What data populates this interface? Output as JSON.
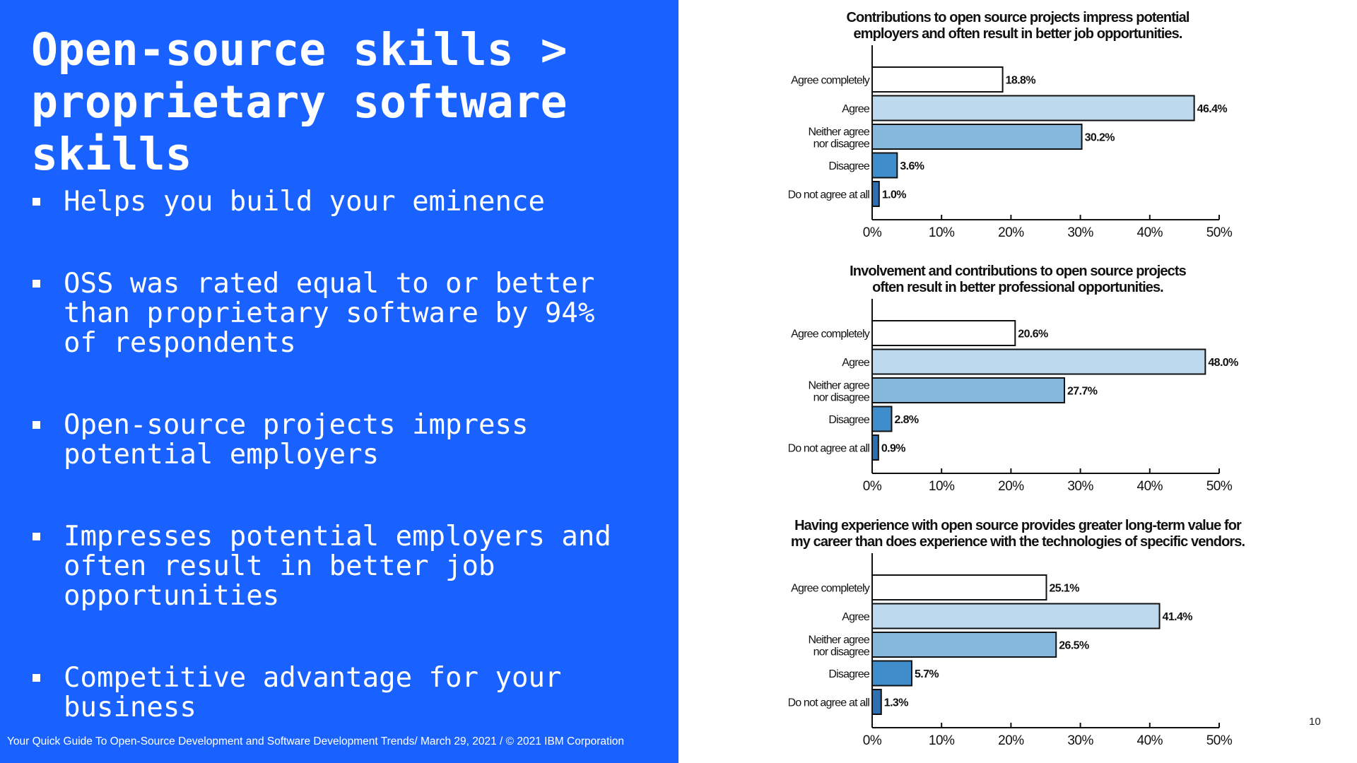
{
  "slide": {
    "title_lines": [
      "Open-source skills >",
      "proprietary software",
      "skills"
    ],
    "bullets": [
      {
        "lines": [
          "Helps you build your eminence"
        ]
      },
      {
        "lines": [
          "OSS was rated equal to or better",
          "than proprietary software by 94%",
          "of respondents"
        ]
      },
      {
        "lines": [
          "Open-source projects impress",
          "potential employers"
        ]
      },
      {
        "lines": [
          "Impresses potential employers and",
          "often result in better job",
          "opportunities"
        ]
      },
      {
        "lines": [
          "Competitive advantage for your",
          "business"
        ]
      }
    ],
    "footer": "Your Quick Guide To Open-Source Development and Software Development Trends/ March 29,  2021 / © 2021 IBM Corporation",
    "page_number": "10"
  },
  "colors": {
    "left_panel": "#1a62ff",
    "bar_agree_completely": "#ffffff",
    "bar_agree": "#bcd9ee",
    "bar_neither": "#86b8de",
    "bar_disagree": "#3f8ecb",
    "bar_do_not_agree": "#2c6fb2"
  },
  "chart_data": [
    {
      "type": "bar",
      "orientation": "horizontal",
      "title": "Contributions to open source projects impress potential employers and often result in better job opportunities.",
      "title_lines": [
        "Contributions to open source projects impress potential",
        "employers and often result in better job opportunities."
      ],
      "categories": [
        "Agree completely",
        "Agree",
        "Neither agree nor disagree",
        "Disagree",
        "Do not agree at all"
      ],
      "category_lines": [
        [
          "Agree completely"
        ],
        [
          "Agree"
        ],
        [
          "Neither agree",
          "nor disagree"
        ],
        [
          "Disagree"
        ],
        [
          "Do not agree at all"
        ]
      ],
      "values": [
        18.8,
        46.4,
        30.2,
        3.6,
        1.0
      ],
      "value_labels": [
        "18.8%",
        "46.4%",
        "30.2%",
        "3.6%",
        "1.0%"
      ],
      "xlim": [
        0,
        50
      ],
      "x_ticks": [
        "0%",
        "10%",
        "20%",
        "30%",
        "40%",
        "50%"
      ],
      "grid": false
    },
    {
      "type": "bar",
      "orientation": "horizontal",
      "title": "Involvement and contributions to open source projects often result in better professional opportunities.",
      "title_lines": [
        "Involvement and contributions to open source projects",
        "often result in better professional opportunities."
      ],
      "categories": [
        "Agree completely",
        "Agree",
        "Neither agree nor disagree",
        "Disagree",
        "Do not agree at all"
      ],
      "category_lines": [
        [
          "Agree completely"
        ],
        [
          "Agree"
        ],
        [
          "Neither agree",
          "nor disagree"
        ],
        [
          "Disagree"
        ],
        [
          "Do not agree at all"
        ]
      ],
      "values": [
        20.6,
        48.0,
        27.7,
        2.8,
        0.9
      ],
      "value_labels": [
        "20.6%",
        "48.0%",
        "27.7%",
        "2.8%",
        "0.9%"
      ],
      "xlim": [
        0,
        50
      ],
      "x_ticks": [
        "0%",
        "10%",
        "20%",
        "30%",
        "40%",
        "50%"
      ],
      "grid": false
    },
    {
      "type": "bar",
      "orientation": "horizontal",
      "title": "Having experience with open source provides greater long-term value for my career than does experience with the technologies of specific vendors.",
      "title_lines": [
        "Having experience with open source provides greater long-term value for",
        "my career than does experience with the technologies of specific vendors."
      ],
      "categories": [
        "Agree completely",
        "Agree",
        "Neither agree nor disagree",
        "Disagree",
        "Do not agree at all"
      ],
      "category_lines": [
        [
          "Agree completely"
        ],
        [
          "Agree"
        ],
        [
          "Neither agree",
          "nor disagree"
        ],
        [
          "Disagree"
        ],
        [
          "Do not agree at all"
        ]
      ],
      "values": [
        25.1,
        41.4,
        26.5,
        5.7,
        1.3
      ],
      "value_labels": [
        "25.1%",
        "41.4%",
        "26.5%",
        "5.7%",
        "1.3%"
      ],
      "xlim": [
        0,
        50
      ],
      "x_ticks": [
        "0%",
        "10%",
        "20%",
        "30%",
        "40%",
        "50%"
      ],
      "grid": false
    }
  ]
}
